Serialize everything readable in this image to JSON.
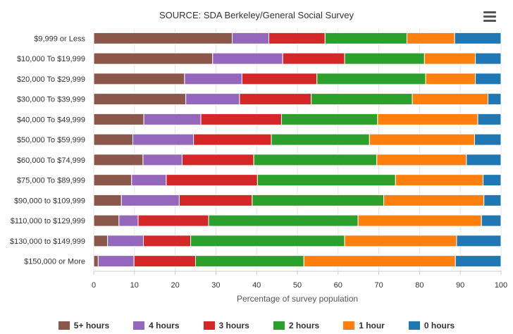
{
  "chart_data": {
    "type": "bar",
    "orientation": "horizontal",
    "stacked": true,
    "title": "SOURCE: SDA Berkeley/General Social Survey",
    "xlabel": "Percentage of survey population",
    "ylabel": "",
    "xlim": [
      0,
      100
    ],
    "xticks": [
      0,
      10,
      20,
      30,
      40,
      50,
      60,
      70,
      80,
      90,
      100
    ],
    "grid": true,
    "legend_position": "bottom",
    "categories": [
      "$9,999 or Less",
      "$10,000 To $19,999",
      "$20,000 To $29,999",
      "$30,000 To $39,999",
      "$40,000 To $49,999",
      "$50,000 To $59,999",
      "$60,000 To $74,999",
      "$75,000 To $89,999",
      "$90,000 to $109,999",
      "$110,000 to $129,999",
      "$130,000 to $149,999",
      "$150,000 or More"
    ],
    "series": [
      {
        "name": "5+ hours",
        "color": "#8B574A",
        "values": [
          34,
          29.2,
          22.3,
          22.6,
          12.3,
          9.6,
          12.1,
          9.3,
          6.8,
          6.2,
          3.4,
          1.1
        ]
      },
      {
        "name": "4 hours",
        "color": "#9467BD",
        "values": [
          9,
          17.2,
          14.1,
          13.2,
          14,
          14.9,
          9.6,
          8.5,
          14.2,
          4.7,
          8.8,
          8.8
        ]
      },
      {
        "name": "3 hours",
        "color": "#D62728",
        "values": [
          13.8,
          15.2,
          18.4,
          17.6,
          19.8,
          19.1,
          17.6,
          22.4,
          17.9,
          17.3,
          11.6,
          15.1
        ]
      },
      {
        "name": "2 hours",
        "color": "#2CA02C",
        "values": [
          20.1,
          19.6,
          26.7,
          24.8,
          23.6,
          24.1,
          30.2,
          33.9,
          32.3,
          36.7,
          37.8,
          26.6
        ]
      },
      {
        "name": "1 hour",
        "color": "#FF7F0E",
        "values": [
          11.7,
          12.5,
          12.2,
          18.6,
          24.6,
          25.8,
          22,
          21.5,
          24.6,
          30.3,
          27.5,
          37.2
        ]
      },
      {
        "name": "0 hours",
        "color": "#1F77B4",
        "values": [
          11.4,
          6.3,
          6.3,
          3.2,
          5.7,
          6.5,
          8.5,
          4.4,
          4.2,
          4.8,
          10.9,
          11.2
        ]
      }
    ]
  }
}
